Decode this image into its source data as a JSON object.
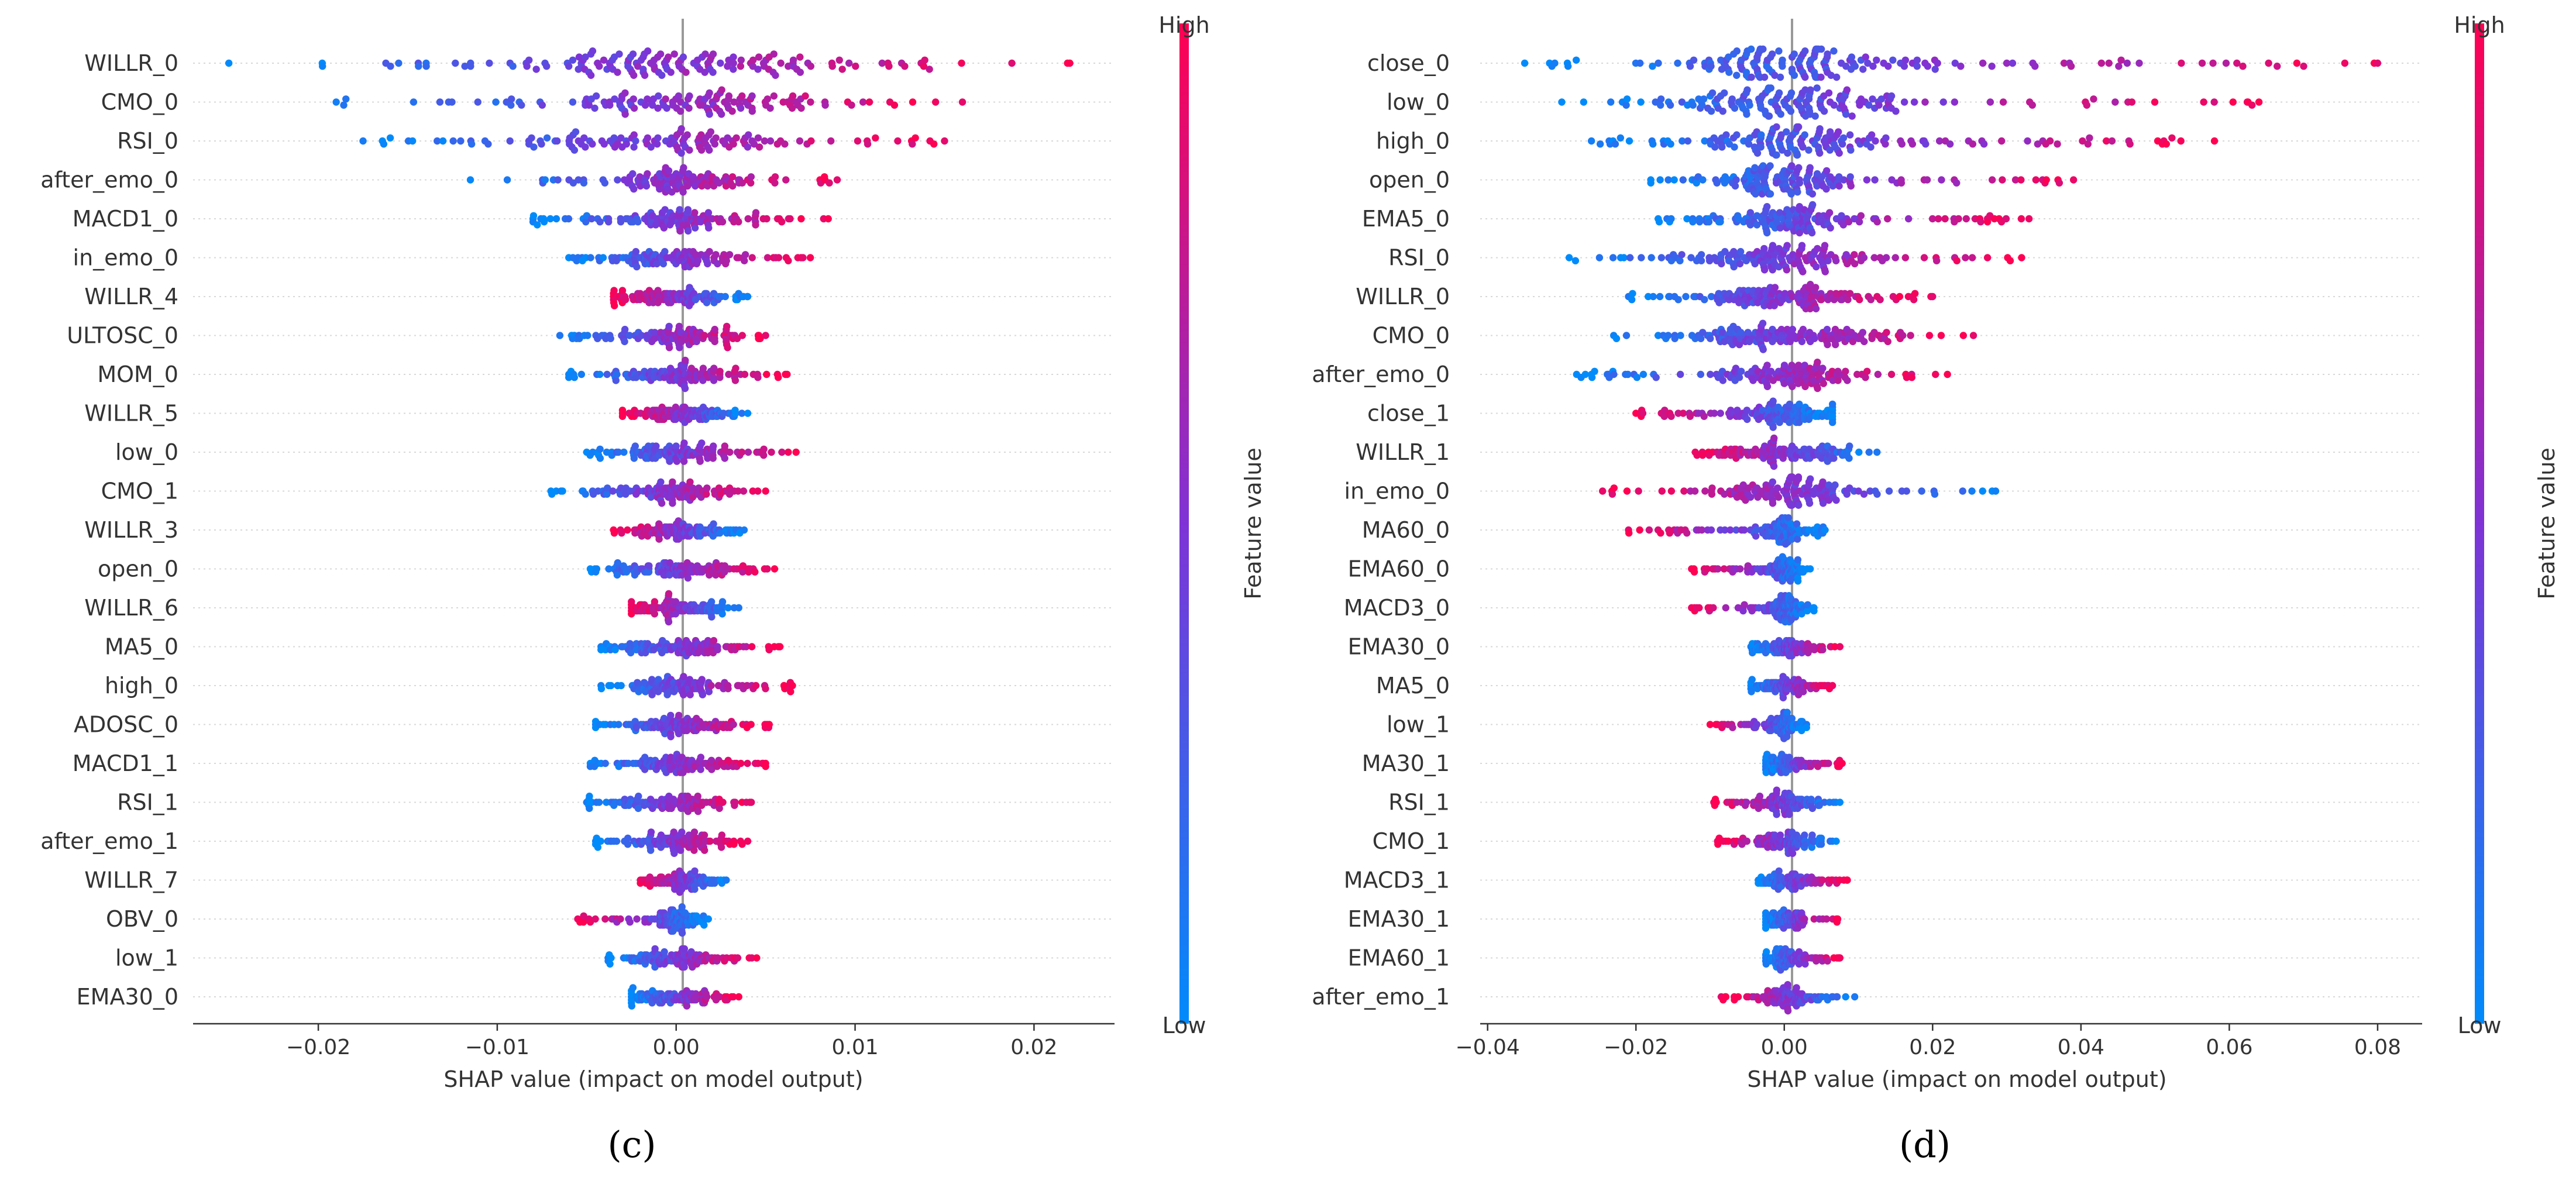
{
  "chart_data": [
    {
      "type": "scatter",
      "subtype": "shap-beeswarm",
      "panel_label": "(c)",
      "xlabel": "SHAP value (impact on model output)",
      "xlim": [
        -0.027,
        0.0245
      ],
      "xticks": [
        -0.02,
        -0.01,
        0.0,
        0.01,
        0.02
      ],
      "xtick_labels": [
        "−0.02",
        "−0.01",
        "0.00",
        "0.01",
        "0.02"
      ],
      "colorbar": {
        "title": "Feature value",
        "high": "High",
        "low": "Low",
        "low_color": "#008bfb",
        "high_color": "#ff0052"
      },
      "features": [
        {
          "name": "WILLR_0",
          "min": -0.025,
          "max": 0.022,
          "core": 0.01,
          "low_side": "left",
          "n": 150
        },
        {
          "name": "CMO_0",
          "min": -0.019,
          "max": 0.016,
          "core": 0.008,
          "low_side": "left",
          "n": 130
        },
        {
          "name": "RSI_0",
          "min": -0.0175,
          "max": 0.015,
          "core": 0.007,
          "low_side": "left",
          "n": 130
        },
        {
          "name": "after_emo_0",
          "min": -0.0115,
          "max": 0.009,
          "core": 0.006,
          "low_side": "left",
          "n": 120
        },
        {
          "name": "MACD1_0",
          "min": -0.008,
          "max": 0.0085,
          "core": 0.005,
          "low_side": "left",
          "n": 120
        },
        {
          "name": "in_emo_0",
          "min": -0.006,
          "max": 0.0075,
          "core": 0.005,
          "low_side": "left",
          "n": 120
        },
        {
          "name": "WILLR_4",
          "min": -0.0035,
          "max": 0.004,
          "core": 0.0035,
          "low_side": "right",
          "n": 130
        },
        {
          "name": "ULTOSC_0",
          "min": -0.0065,
          "max": 0.005,
          "core": 0.0045,
          "low_side": "left",
          "n": 120
        },
        {
          "name": "MOM_0",
          "min": -0.006,
          "max": 0.0062,
          "core": 0.0045,
          "low_side": "left",
          "n": 120
        },
        {
          "name": "WILLR_5",
          "min": -0.003,
          "max": 0.004,
          "core": 0.003,
          "low_side": "right",
          "n": 130
        },
        {
          "name": "low_0",
          "min": -0.005,
          "max": 0.0067,
          "core": 0.004,
          "low_side": "left",
          "n": 120
        },
        {
          "name": "CMO_1",
          "min": -0.007,
          "max": 0.005,
          "core": 0.004,
          "low_side": "left",
          "n": 120
        },
        {
          "name": "WILLR_3",
          "min": -0.0035,
          "max": 0.0038,
          "core": 0.003,
          "low_side": "right",
          "n": 130
        },
        {
          "name": "open_0",
          "min": -0.0048,
          "max": 0.0055,
          "core": 0.0035,
          "low_side": "left",
          "n": 120
        },
        {
          "name": "WILLR_6",
          "min": -0.0025,
          "max": 0.0035,
          "core": 0.003,
          "low_side": "right",
          "n": 130
        },
        {
          "name": "MA5_0",
          "min": -0.0042,
          "max": 0.0058,
          "core": 0.0035,
          "low_side": "left",
          "n": 120
        },
        {
          "name": "high_0",
          "min": -0.0042,
          "max": 0.0065,
          "core": 0.0035,
          "low_side": "left",
          "n": 120
        },
        {
          "name": "ADOSC_0",
          "min": -0.0045,
          "max": 0.0052,
          "core": 0.0038,
          "low_side": "left",
          "n": 120
        },
        {
          "name": "MACD1_1",
          "min": -0.0048,
          "max": 0.005,
          "core": 0.0035,
          "low_side": "left",
          "n": 120
        },
        {
          "name": "RSI_1",
          "min": -0.005,
          "max": 0.0042,
          "core": 0.0035,
          "low_side": "left",
          "n": 120
        },
        {
          "name": "after_emo_1",
          "min": -0.0045,
          "max": 0.004,
          "core": 0.003,
          "low_side": "left",
          "n": 120
        },
        {
          "name": "WILLR_7",
          "min": -0.002,
          "max": 0.0028,
          "core": 0.0025,
          "low_side": "right",
          "n": 130
        },
        {
          "name": "OBV_0",
          "min": -0.0055,
          "max": 0.0018,
          "core": 0.0015,
          "low_side": "right",
          "n": 120
        },
        {
          "name": "low_1",
          "min": -0.0038,
          "max": 0.0045,
          "core": 0.003,
          "low_side": "left",
          "n": 120
        },
        {
          "name": "EMA30_0",
          "min": -0.0025,
          "max": 0.0035,
          "core": 0.003,
          "low_side": "left",
          "n": 120
        }
      ]
    },
    {
      "type": "scatter",
      "subtype": "shap-beeswarm",
      "panel_label": "(d)",
      "xlabel": "SHAP value (impact on model output)",
      "xlim": [
        -0.041,
        0.086
      ],
      "xticks": [
        -0.04,
        -0.02,
        0.0,
        0.02,
        0.04,
        0.06,
        0.08
      ],
      "xtick_labels": [
        "−0.04",
        "−0.02",
        "0.00",
        "0.02",
        "0.04",
        "0.06",
        "0.08"
      ],
      "colorbar": {
        "title": "Feature value",
        "high": "High",
        "low": "Low",
        "low_color": "#008bfb",
        "high_color": "#ff0052"
      },
      "features": [
        {
          "name": "close_0",
          "min": -0.035,
          "max": 0.08,
          "core": 0.016,
          "low_side": "left",
          "n": 170
        },
        {
          "name": "low_0",
          "min": -0.03,
          "max": 0.064,
          "core": 0.016,
          "low_side": "left",
          "n": 160
        },
        {
          "name": "high_0",
          "min": -0.026,
          "max": 0.058,
          "core": 0.015,
          "low_side": "left",
          "n": 160
        },
        {
          "name": "open_0",
          "min": -0.018,
          "max": 0.039,
          "core": 0.01,
          "low_side": "left",
          "n": 150
        },
        {
          "name": "EMA5_0",
          "min": -0.017,
          "max": 0.033,
          "core": 0.01,
          "low_side": "left",
          "n": 150
        },
        {
          "name": "RSI_0",
          "min": -0.029,
          "max": 0.032,
          "core": 0.015,
          "low_side": "left",
          "n": 150
        },
        {
          "name": "WILLR_0",
          "min": -0.021,
          "max": 0.02,
          "core": 0.015,
          "low_side": "left",
          "n": 150
        },
        {
          "name": "CMO_0",
          "min": -0.023,
          "max": 0.0255,
          "core": 0.015,
          "low_side": "left",
          "n": 150
        },
        {
          "name": "after_emo_0",
          "min": -0.028,
          "max": 0.022,
          "core": 0.012,
          "low_side": "left",
          "n": 140
        },
        {
          "name": "close_1",
          "min": -0.02,
          "max": 0.0065,
          "core": 0.008,
          "low_side": "right",
          "n": 140
        },
        {
          "name": "WILLR_1",
          "min": -0.012,
          "max": 0.0125,
          "core": 0.01,
          "low_side": "right",
          "n": 140
        },
        {
          "name": "in_emo_0",
          "min": -0.0245,
          "max": 0.0285,
          "core": 0.01,
          "low_side": "right",
          "n": 140
        },
        {
          "name": "MA60_0",
          "min": -0.021,
          "max": 0.0055,
          "core": 0.004,
          "low_side": "right",
          "n": 120
        },
        {
          "name": "EMA60_0",
          "min": -0.0125,
          "max": 0.0035,
          "core": 0.003,
          "low_side": "right",
          "n": 120
        },
        {
          "name": "MACD3_0",
          "min": -0.0125,
          "max": 0.004,
          "core": 0.003,
          "low_side": "right",
          "n": 120
        },
        {
          "name": "EMA30_0",
          "min": -0.0045,
          "max": 0.0075,
          "core": 0.004,
          "low_side": "left",
          "n": 120
        },
        {
          "name": "MA5_0",
          "min": -0.0045,
          "max": 0.0065,
          "core": 0.004,
          "low_side": "left",
          "n": 120
        },
        {
          "name": "low_1",
          "min": -0.01,
          "max": 0.003,
          "core": 0.003,
          "low_side": "right",
          "n": 110
        },
        {
          "name": "MA30_1",
          "min": -0.0025,
          "max": 0.0078,
          "core": 0.003,
          "low_side": "left",
          "n": 120
        },
        {
          "name": "RSI_1",
          "min": -0.0095,
          "max": 0.0075,
          "core": 0.005,
          "low_side": "right",
          "n": 120
        },
        {
          "name": "CMO_1",
          "min": -0.009,
          "max": 0.007,
          "core": 0.005,
          "low_side": "right",
          "n": 120
        },
        {
          "name": "MACD3_1",
          "min": -0.0035,
          "max": 0.0085,
          "core": 0.004,
          "low_side": "left",
          "n": 120
        },
        {
          "name": "EMA30_1",
          "min": -0.0025,
          "max": 0.0072,
          "core": 0.003,
          "low_side": "left",
          "n": 120
        },
        {
          "name": "EMA60_1",
          "min": -0.0025,
          "max": 0.0075,
          "core": 0.003,
          "low_side": "left",
          "n": 120
        },
        {
          "name": "after_emo_1",
          "min": -0.0085,
          "max": 0.0095,
          "core": 0.004,
          "low_side": "right",
          "n": 110
        }
      ]
    }
  ]
}
